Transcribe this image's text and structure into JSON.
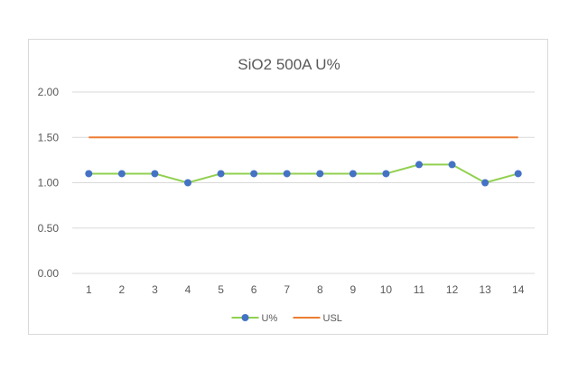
{
  "chart_data": {
    "type": "line",
    "title": "SiO2 500A U%",
    "xlabel": "",
    "ylabel": "",
    "categories": [
      "1",
      "2",
      "3",
      "4",
      "5",
      "6",
      "7",
      "8",
      "9",
      "10",
      "11",
      "12",
      "13",
      "14"
    ],
    "ylim": [
      0,
      2
    ],
    "yticks": [
      "0.00",
      "0.50",
      "1.00",
      "1.50",
      "2.00"
    ],
    "grid": true,
    "legend_position": "bottom",
    "series": [
      {
        "name": "U%",
        "values": [
          1.1,
          1.1,
          1.1,
          1.0,
          1.1,
          1.1,
          1.1,
          1.1,
          1.1,
          1.1,
          1.2,
          1.2,
          1.0,
          1.1
        ],
        "line_color": "#92d050",
        "marker_color": "#4472c4",
        "marker": "circle"
      },
      {
        "name": "USL",
        "values": [
          1.5,
          1.5,
          1.5,
          1.5,
          1.5,
          1.5,
          1.5,
          1.5,
          1.5,
          1.5,
          1.5,
          1.5,
          1.5,
          1.5
        ],
        "line_color": "#ed7d31",
        "marker": "none"
      }
    ],
    "colors": {
      "grid": "#d9d9d9",
      "text": "#595959",
      "border": "#d9d9d9"
    }
  }
}
